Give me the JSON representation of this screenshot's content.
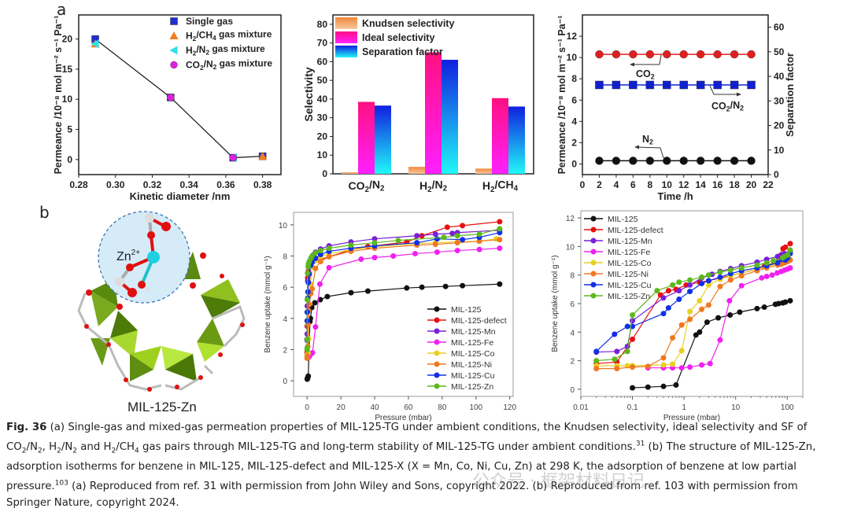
{
  "panels": {
    "a": "a",
    "b": "b"
  },
  "structure": {
    "label": "MIL-125-Zn",
    "ion_label": "Zn",
    "ion_charge": "2+"
  },
  "chart_data": [
    {
      "id": "permeance-vs-diameter",
      "type": "scatter",
      "xlabel": "Kinetic diameter /nm",
      "ylabel": "Permeance /10⁻⁸ mol m⁻² s⁻¹ Pa⁻¹",
      "xlim": [
        0.28,
        0.39
      ],
      "ylim": [
        -2.5,
        24
      ],
      "xticks": [
        0.28,
        0.3,
        0.32,
        0.34,
        0.36,
        0.38
      ],
      "yticks": [
        0,
        5,
        10,
        15,
        20
      ],
      "legend_position": "top-right",
      "line": {
        "x": [
          0.289,
          0.33,
          0.364,
          0.38
        ],
        "y": [
          20.0,
          10.3,
          0.3,
          0.55
        ]
      },
      "series": [
        {
          "name": "Single gas",
          "marker": "square",
          "color": "#1f2fd0",
          "x": [
            0.289,
            0.33,
            0.364,
            0.38
          ],
          "y": [
            20.0,
            10.3,
            0.3,
            0.55
          ]
        },
        {
          "name": "H2/CH4 gas mixture",
          "marker": "triangle-up",
          "color": "#f07d20",
          "x": [
            0.289,
            0.38
          ],
          "y": [
            19.2,
            0.55
          ]
        },
        {
          "name": "H2/N2 gas mixture",
          "marker": "triangle-left",
          "color": "#2fe0e8",
          "x": [
            0.289,
            0.364
          ],
          "y": [
            19.2,
            0.3
          ]
        },
        {
          "name": "CO2/N2 gas mixture",
          "marker": "circle",
          "color": "#e020e0",
          "x": [
            0.33,
            0.364
          ],
          "y": [
            10.3,
            0.3
          ]
        }
      ],
      "legend_labels": [
        {
          "main": "Single gas",
          "parts": []
        },
        {
          "parts": [
            "H",
            "2",
            "/CH",
            "4",
            " gas mixture"
          ]
        },
        {
          "parts": [
            "H",
            "2",
            "/N",
            "2",
            " gas mixture"
          ]
        },
        {
          "parts": [
            "CO",
            "2",
            "/N",
            "2",
            " gas mixture"
          ]
        }
      ]
    },
    {
      "id": "selectivity-bars",
      "type": "bar",
      "ylabel": "Selectivity",
      "ylim": [
        0,
        85
      ],
      "yticks": [
        0,
        10,
        20,
        30,
        40,
        50,
        60,
        70,
        80
      ],
      "categories": [
        "CO2/N2",
        "H2/N2",
        "H2/CH4"
      ],
      "category_parts": [
        [
          "CO",
          "2",
          "/N",
          "2"
        ],
        [
          "H",
          "2",
          "/N",
          "2"
        ],
        [
          "H",
          "2",
          "/CH",
          "4"
        ]
      ],
      "legend_position": "top-left",
      "series": [
        {
          "name": "Knudsen selectivity",
          "values": [
            0.8,
            3.7,
            2.8
          ],
          "color_top": "#f0883a",
          "color_bottom": "#f8c8a0"
        },
        {
          "name": "Ideal selectivity",
          "values": [
            38.5,
            65,
            40.5
          ],
          "color_top": "#ff1080",
          "color_bottom": "#ff20ff"
        },
        {
          "name": "Separation factor",
          "values": [
            36.5,
            61,
            36
          ],
          "color_top": "#1020e0",
          "color_bottom": "#20f8f8"
        }
      ]
    },
    {
      "id": "long-term-stability",
      "type": "line",
      "xlabel": "Time /h",
      "ylabel_left": "Permeance /10⁻⁸ mol m⁻² s⁻¹ Pa⁻¹",
      "ylabel_right": "Separation factor",
      "xlim": [
        0,
        22
      ],
      "ylim_left": [
        -1,
        14
      ],
      "ylim_right": [
        0,
        65
      ],
      "xticks": [
        0,
        2,
        4,
        6,
        8,
        10,
        12,
        14,
        16,
        18,
        20,
        22
      ],
      "yticks_left": [
        0,
        2,
        4,
        6,
        8,
        10,
        12
      ],
      "yticks_right": [
        0,
        10,
        20,
        30,
        40,
        50,
        60
      ],
      "x": [
        2,
        4,
        6,
        8,
        10,
        12,
        14,
        16,
        18,
        20
      ],
      "series": [
        {
          "name": "CO2",
          "axis": "left",
          "marker": "circle",
          "color": "#e02020",
          "y": [
            10.3,
            10.3,
            10.3,
            10.3,
            10.3,
            10.3,
            10.3,
            10.3,
            10.3,
            10.3
          ]
        },
        {
          "name": "CO2/N2",
          "axis": "right",
          "marker": "square",
          "color": "#1020d0",
          "y": [
            36.5,
            36.5,
            36.5,
            36.5,
            36.5,
            36.5,
            36.5,
            36.5,
            36.5,
            36.5
          ]
        },
        {
          "name": "N2",
          "axis": "left",
          "marker": "circle",
          "color": "#111111",
          "y": [
            0.3,
            0.3,
            0.3,
            0.3,
            0.3,
            0.3,
            0.3,
            0.3,
            0.3,
            0.3
          ]
        }
      ],
      "annotations": [
        {
          "parts": [
            "CO",
            "2"
          ],
          "arrow": "left"
        },
        {
          "parts": [
            "CO",
            "2",
            "/N",
            "2"
          ],
          "arrow": "right"
        },
        {
          "parts": [
            "N",
            "2"
          ],
          "arrow": "left"
        }
      ]
    },
    {
      "id": "benzene-isotherm-linear",
      "type": "line",
      "xlabel": "Pressure (mbar)",
      "ylabel": "Benzene uptake (mmol g⁻¹)",
      "xlim": [
        -8,
        122
      ],
      "ylim": [
        -1,
        10.8
      ],
      "xticks": [
        0,
        20,
        40,
        60,
        80,
        100,
        120
      ],
      "yticks": [
        0,
        2,
        4,
        6,
        8,
        10
      ],
      "legend_position": "bottom-right",
      "series": [
        {
          "name": "MIL-125",
          "color": "#111111",
          "x": [
            0.1,
            0.2,
            0.4,
            0.7,
            1.7,
            2.0,
            2.8,
            4.6,
            7.8,
            12,
            26,
            36,
            59,
            68,
            82,
            92,
            114
          ],
          "y": [
            0.1,
            0.15,
            0.2,
            0.3,
            3.8,
            4.0,
            4.7,
            5.0,
            5.2,
            5.4,
            5.65,
            5.75,
            5.95,
            6.0,
            6.05,
            6.1,
            6.2
          ]
        },
        {
          "name": "MIL-125-defect",
          "color": "#e81010",
          "x": [
            0.02,
            0.05,
            0.1,
            0.35,
            0.5,
            0.7,
            1.1,
            2.0,
            3.0,
            26,
            36,
            59,
            68,
            83,
            92,
            114
          ],
          "y": [
            1.8,
            1.9,
            3.5,
            6.6,
            6.9,
            7.0,
            7.3,
            7.5,
            7.6,
            8.4,
            8.6,
            8.9,
            9.3,
            9.85,
            9.95,
            10.2
          ]
        },
        {
          "name": "MIL-125-Mn",
          "color": "#7a1fd8",
          "x": [
            0.02,
            0.05,
            0.08,
            0.1,
            0.4,
            0.8,
            1.3,
            2.2,
            3.5,
            5,
            8,
            13,
            26,
            40,
            65,
            76,
            86,
            89,
            114
          ],
          "y": [
            2.6,
            2.65,
            3.0,
            4.8,
            6.4,
            6.9,
            7.3,
            7.8,
            8.05,
            8.25,
            8.45,
            8.65,
            8.9,
            9.1,
            9.3,
            9.4,
            9.45,
            9.5,
            9.65
          ]
        },
        {
          "name": "MIL-125-Fe",
          "color": "#f020f0",
          "x": [
            0.2,
            0.4,
            0.6,
            0.9,
            1.3,
            2.2,
            3.2,
            5.0,
            7.6,
            13,
            32,
            40,
            51,
            64,
            77,
            89,
            102,
            114
          ],
          "y": [
            1.5,
            1.5,
            1.5,
            1.5,
            1.55,
            1.7,
            1.8,
            3.45,
            6.2,
            7.25,
            7.8,
            7.9,
            8.0,
            8.15,
            8.25,
            8.35,
            8.42,
            8.5
          ]
        },
        {
          "name": "MIL-125-Co",
          "color": "#e8d020",
          "x": [
            0.02,
            0.05,
            0.08,
            0.1,
            0.4,
            0.6,
            0.9,
            1.3,
            2.0,
            3.0,
            5.0,
            8,
            13,
            26,
            40,
            65,
            76,
            89,
            102,
            112
          ],
          "y": [
            1.65,
            1.65,
            1.65,
            1.65,
            1.7,
            1.75,
            2.7,
            5.45,
            6.2,
            7.3,
            7.7,
            7.95,
            8.15,
            8.4,
            8.6,
            8.8,
            8.85,
            8.9,
            8.95,
            9.1
          ]
        },
        {
          "name": "MIL-125-Ni",
          "color": "#f07820",
          "x": [
            0.02,
            0.05,
            0.1,
            0.2,
            0.4,
            0.6,
            0.9,
            1.3,
            2.2,
            3.0,
            5.0,
            8,
            13,
            26,
            40,
            65,
            76,
            89,
            102,
            114
          ],
          "y": [
            1.45,
            1.45,
            1.55,
            1.6,
            2.2,
            3.6,
            4.5,
            4.9,
            5.6,
            5.9,
            7.2,
            7.65,
            7.95,
            8.3,
            8.5,
            8.7,
            8.75,
            8.85,
            8.95,
            9.05
          ]
        },
        {
          "name": "MIL-125-Cu",
          "color": "#1030e8",
          "x": [
            0.02,
            0.045,
            0.08,
            0.1,
            0.4,
            0.5,
            0.8,
            1.3,
            2.2,
            3.0,
            5.0,
            8,
            13,
            26,
            40,
            65,
            77,
            92,
            102,
            114
          ],
          "y": [
            2.65,
            3.85,
            4.4,
            4.4,
            5.3,
            5.7,
            6.3,
            6.85,
            7.4,
            7.6,
            7.85,
            8.1,
            8.3,
            8.5,
            8.65,
            8.85,
            9.1,
            9.05,
            9.2,
            9.5
          ]
        },
        {
          "name": "MIL-125-Zn",
          "color": "#5cb81c",
          "x": [
            0.02,
            0.045,
            0.08,
            0.1,
            0.3,
            0.6,
            0.8,
            1.3,
            2.2,
            3.0,
            5.0,
            8,
            13,
            26,
            40,
            54,
            81,
            89,
            102,
            114
          ],
          "y": [
            2.0,
            2.1,
            2.65,
            5.2,
            6.9,
            7.3,
            7.5,
            7.65,
            7.85,
            8.0,
            8.2,
            8.35,
            8.5,
            8.7,
            8.85,
            9.0,
            9.2,
            9.3,
            9.4,
            9.75
          ]
        }
      ]
    },
    {
      "id": "benzene-isotherm-log",
      "type": "line",
      "xlabel": "Pressure (mbar)",
      "ylabel": "Benzene uptake (mmol g⁻¹)",
      "xscale": "log",
      "xlim": [
        0.01,
        200
      ],
      "ylim": [
        -0.5,
        12.5
      ],
      "xticks": [
        0.01,
        0.1,
        1,
        10,
        100
      ],
      "xtick_labels": [
        "0.01",
        "0.1",
        "1",
        "10",
        "100"
      ],
      "yticks": [
        0,
        2,
        4,
        6,
        8,
        10,
        12
      ],
      "legend_position": "top-left",
      "series_ref": "benzene-isotherm-linear"
    }
  ],
  "caption": {
    "fig_label": "Fig. 36",
    "segments": [
      {
        "t": "   (a) Single-gas and mixed-gas permeation properties of MIL-125-TG under ambient conditions, the Knudsen selectivity, ideal selectivity and SF of CO"
      },
      {
        "sub": "2"
      },
      {
        "t": "/N"
      },
      {
        "sub": "2"
      },
      {
        "t": ", H"
      },
      {
        "sub": "2"
      },
      {
        "t": "/N"
      },
      {
        "sub": "2"
      },
      {
        "t": " and H"
      },
      {
        "sub": "2"
      },
      {
        "t": "/CH"
      },
      {
        "sub": "4"
      },
      {
        "t": " gas pairs through MIL-125-TG and long-term stability of MIL-125-TG under ambient conditions."
      },
      {
        "sup": "31"
      },
      {
        "t": " (b) The structure of MIL-125-Zn, adsorption isotherms for benzene in MIL-125, MIL-125-defect and MIL-125-X (X = Mn, Co, Ni, Cu, Zn) at 298 K, the adsorption of benzene at low partial pressure."
      },
      {
        "sup": "103"
      },
      {
        "t": " (a) Reproduced from ref. 31 with permission from John Wiley and Sons, copyright 2022. (b) Reproduced from ref. 103 with permission from Springer Nature, copyright 2024."
      }
    ]
  },
  "watermark": "公众号 · 框架材料日记"
}
